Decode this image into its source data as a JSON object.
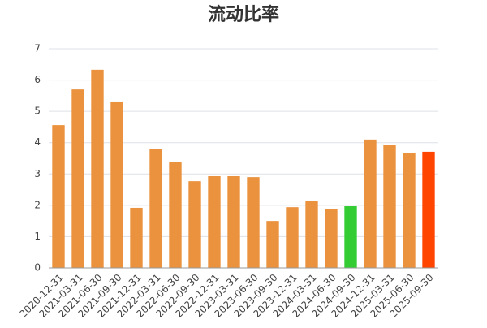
{
  "chart_data": {
    "type": "bar",
    "title": "流动比率",
    "categories": [
      "2020-12-31",
      "2021-03-31",
      "2021-06-30",
      "2021-09-30",
      "2021-12-31",
      "2022-03-31",
      "2022-06-30",
      "2022-09-30",
      "2022-12-31",
      "2023-03-31",
      "2023-06-30",
      "2023-09-30",
      "2023-12-31",
      "2024-03-31",
      "2024-06-30",
      "2024-09-30",
      "2024-12-31",
      "2025-03-31",
      "2025-06-30",
      "2025-09-30"
    ],
    "values": [
      4.56,
      5.7,
      6.33,
      5.29,
      1.92,
      3.79,
      3.37,
      2.77,
      2.93,
      2.93,
      2.9,
      1.5,
      1.94,
      2.15,
      1.89,
      1.97,
      4.1,
      3.94,
      3.68,
      3.71
    ],
    "colors": [
      "#ea923d",
      "#ea923d",
      "#ea923d",
      "#ea923d",
      "#ea923d",
      "#ea923d",
      "#ea923d",
      "#ea923d",
      "#ea923d",
      "#ea923d",
      "#ea923d",
      "#ea923d",
      "#ea923d",
      "#ea923d",
      "#ea923d",
      "#33cc33",
      "#ea923d",
      "#ea923d",
      "#ea923d",
      "#ff4500"
    ],
    "ylim": [
      0,
      7
    ],
    "yticks": [
      0,
      1,
      2,
      3,
      4,
      5,
      6,
      7
    ],
    "grid": true
  }
}
